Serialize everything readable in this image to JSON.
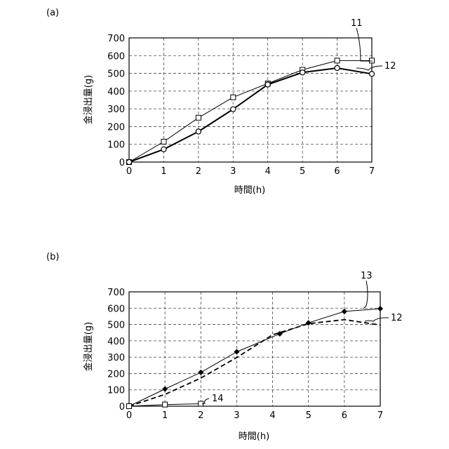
{
  "chart_data": [
    {
      "type": "line",
      "panel_label": "(a)",
      "xlabel": "時間(h)",
      "ylabel": "金浸出量(g)",
      "xlim": [
        0,
        7
      ],
      "ylim": [
        0,
        700
      ],
      "xticks": [
        0,
        1,
        2,
        3,
        4,
        5,
        6,
        7
      ],
      "yticks": [
        0,
        100,
        200,
        300,
        400,
        500,
        600,
        700
      ],
      "grid": true,
      "series": [
        {
          "name": "11",
          "marker": "square",
          "line": "solid-thin",
          "x": [
            0,
            1,
            2,
            3,
            4,
            5,
            6,
            7
          ],
          "y": [
            0,
            115,
            250,
            365,
            443,
            520,
            572,
            572
          ]
        },
        {
          "name": "12",
          "marker": "circle",
          "line": "solid-bold",
          "x": [
            0,
            1,
            2,
            3,
            4,
            5,
            6,
            7
          ],
          "y": [
            0,
            72,
            172,
            298,
            437,
            505,
            530,
            497
          ]
        }
      ]
    },
    {
      "type": "line",
      "panel_label": "(b)",
      "xlabel": "時間(h)",
      "ylabel": "金浸出量(g)",
      "xlim": [
        0,
        7
      ],
      "ylim": [
        0,
        700
      ],
      "xticks": [
        0,
        1,
        2,
        3,
        4,
        5,
        6,
        7
      ],
      "yticks": [
        0,
        100,
        200,
        300,
        400,
        500,
        600,
        700
      ],
      "grid": true,
      "series": [
        {
          "name": "13",
          "marker": "diamond",
          "line": "solid-thin",
          "x": [
            0,
            1,
            2,
            3,
            4.2,
            5,
            6,
            7
          ],
          "y": [
            0,
            105,
            207,
            333,
            443,
            510,
            580,
            597
          ]
        },
        {
          "name": "12",
          "marker": "none",
          "line": "dashed",
          "x": [
            0,
            1,
            2,
            3,
            4,
            5,
            6,
            7
          ],
          "y": [
            0,
            72,
            172,
            298,
            437,
            505,
            530,
            497
          ]
        },
        {
          "name": "14",
          "marker": "square",
          "line": "solid-thin",
          "x": [
            0,
            1,
            2
          ],
          "y": [
            0,
            10,
            15
          ]
        }
      ]
    }
  ]
}
